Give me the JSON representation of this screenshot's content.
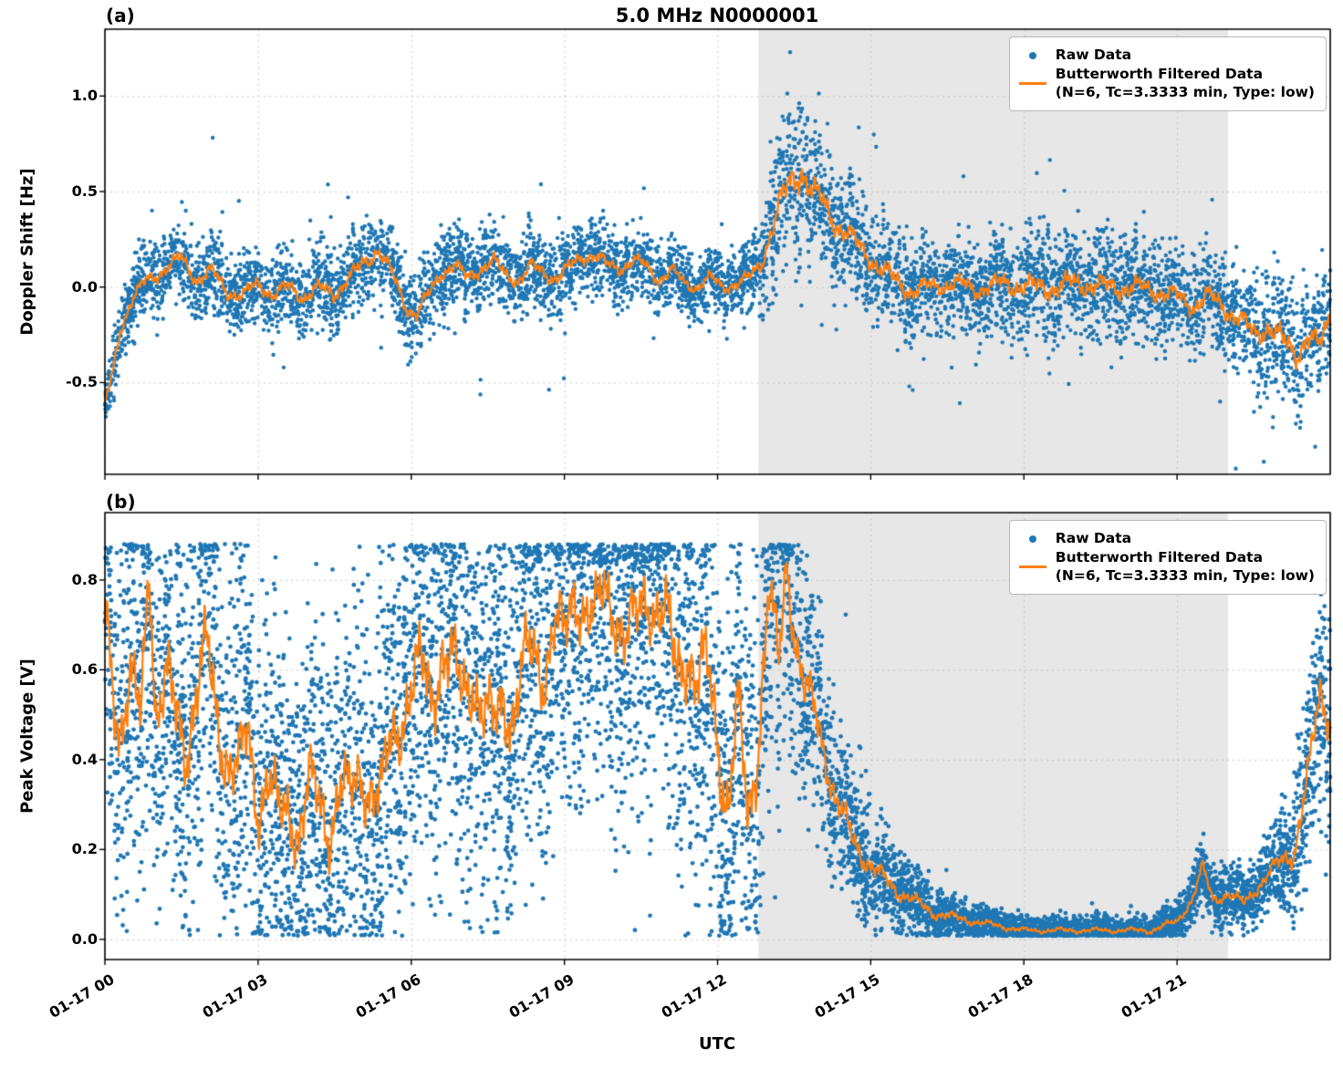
{
  "title": "5.0 MHz N0000001",
  "xlabel": "UTC",
  "chart_data": [
    {
      "type": "scatter",
      "panel_label": "(a)",
      "ylabel": "Doppler Shift [Hz]",
      "ylim": [
        -0.98,
        1.35
      ],
      "ytick_values": [
        1.0,
        0.5,
        0.0,
        -0.5
      ],
      "ytick_labels": [
        "1.0",
        "0.5",
        "0.0",
        "-0.5"
      ],
      "x_hours_range": [
        0,
        24
      ],
      "xtick_hours": [
        0,
        3,
        6,
        9,
        12,
        15,
        18,
        21
      ],
      "xtick_labels": [
        "01-17 00",
        "01-17 03",
        "01-17 06",
        "01-17 09",
        "01-17 12",
        "01-17 15",
        "01-17 18",
        "01-17 21"
      ],
      "show_xtick_labels": false,
      "shaded_region_hours": [
        12.8,
        22.0
      ],
      "shade_color": "#e7e7e7",
      "raw_color": "#1f77b4",
      "filtered_color": "#ff7f0e",
      "legend_raw": "Raw Data",
      "legend_filtered_1": "Butterworth Filtered Data",
      "legend_filtered_2": "(N=6, Tc=3.3333 min, Type: low)",
      "seed": 12345,
      "wiggle_phase": 1.3,
      "raw_point_count": 7000,
      "dot_radius": 2.2,
      "value_clip": [
        -0.95,
        1.26
      ],
      "line_clip": [
        -0.9,
        1.2
      ],
      "reflect_clip": false,
      "filtered_line": [
        [
          0,
          -0.62
        ],
        [
          0.15,
          -0.45
        ],
        [
          0.3,
          -0.22
        ],
        [
          0.5,
          -0.08
        ],
        [
          0.8,
          0.03
        ],
        [
          1.2,
          0.1
        ],
        [
          1.5,
          0.15
        ],
        [
          1.8,
          0.04
        ],
        [
          2.1,
          0.08
        ],
        [
          2.4,
          -0.02
        ],
        [
          2.7,
          -0.05
        ],
        [
          3.0,
          0.02
        ],
        [
          3.3,
          -0.04
        ],
        [
          3.6,
          0.0
        ],
        [
          3.9,
          -0.05
        ],
        [
          4.2,
          -0.01
        ],
        [
          4.5,
          -0.03
        ],
        [
          4.8,
          0.05
        ],
        [
          5.1,
          0.13
        ],
        [
          5.35,
          0.2
        ],
        [
          5.6,
          0.08
        ],
        [
          5.9,
          -0.1
        ],
        [
          6.1,
          -0.14
        ],
        [
          6.35,
          -0.04
        ],
        [
          6.6,
          0.08
        ],
        [
          6.85,
          0.12
        ],
        [
          7.1,
          0.04
        ],
        [
          7.35,
          0.1
        ],
        [
          7.6,
          0.14
        ],
        [
          7.85,
          0.06
        ],
        [
          8.1,
          0.04
        ],
        [
          8.35,
          0.11
        ],
        [
          8.6,
          0.07
        ],
        [
          8.85,
          0.05
        ],
        [
          9.1,
          0.1
        ],
        [
          9.35,
          0.16
        ],
        [
          9.6,
          0.17
        ],
        [
          9.85,
          0.11
        ],
        [
          10.1,
          0.1
        ],
        [
          10.35,
          0.14
        ],
        [
          10.6,
          0.11
        ],
        [
          10.85,
          0.04
        ],
        [
          11.1,
          0.09
        ],
        [
          11.35,
          0.02
        ],
        [
          11.6,
          0.0
        ],
        [
          11.85,
          0.05
        ],
        [
          12.1,
          0.0
        ],
        [
          12.35,
          0.02
        ],
        [
          12.6,
          0.04
        ],
        [
          12.85,
          0.12
        ],
        [
          13.05,
          0.3
        ],
        [
          13.25,
          0.45
        ],
        [
          13.45,
          0.55
        ],
        [
          13.65,
          0.62
        ],
        [
          13.85,
          0.5
        ],
        [
          14.05,
          0.44
        ],
        [
          14.3,
          0.34
        ],
        [
          14.55,
          0.28
        ],
        [
          14.8,
          0.2
        ],
        [
          15.05,
          0.14
        ],
        [
          15.3,
          0.07
        ],
        [
          15.55,
          0.02
        ],
        [
          15.8,
          -0.02
        ],
        [
          16.1,
          0.0
        ],
        [
          16.6,
          0.02
        ],
        [
          17.1,
          -0.01
        ],
        [
          17.6,
          0.02
        ],
        [
          18.1,
          0.0
        ],
        [
          18.6,
          0.0
        ],
        [
          19.1,
          0.02
        ],
        [
          19.6,
          0.0
        ],
        [
          20.1,
          0.0
        ],
        [
          20.6,
          -0.02
        ],
        [
          21.0,
          -0.05
        ],
        [
          21.3,
          -0.1
        ],
        [
          21.6,
          -0.05
        ],
        [
          21.9,
          -0.1
        ],
        [
          22.2,
          -0.16
        ],
        [
          22.5,
          -0.25
        ],
        [
          22.8,
          -0.2
        ],
        [
          23.1,
          -0.3
        ],
        [
          23.35,
          -0.35
        ],
        [
          23.55,
          -0.25
        ],
        [
          23.8,
          -0.32
        ],
        [
          24,
          -0.15
        ]
      ],
      "raw_spread": [
        [
          0,
          0.07
        ],
        [
          0.5,
          0.09
        ],
        [
          1,
          0.1
        ],
        [
          3,
          0.1
        ],
        [
          5,
          0.11
        ],
        [
          6,
          0.1
        ],
        [
          9,
          0.1
        ],
        [
          12,
          0.08
        ],
        [
          12.8,
          0.1
        ],
        [
          13.2,
          0.18
        ],
        [
          13.6,
          0.22
        ],
        [
          14,
          0.18
        ],
        [
          14.6,
          0.15
        ],
        [
          15.2,
          0.14
        ],
        [
          16,
          0.12
        ],
        [
          17,
          0.12
        ],
        [
          18,
          0.14
        ],
        [
          19,
          0.15
        ],
        [
          20,
          0.14
        ],
        [
          21,
          0.12
        ],
        [
          22,
          0.14
        ],
        [
          23,
          0.17
        ],
        [
          24,
          0.16
        ]
      ]
    },
    {
      "type": "scatter",
      "panel_label": "(b)",
      "ylabel": "Peak Voltage [V]",
      "ylim": [
        -0.045,
        0.95
      ],
      "ytick_values": [
        0.8,
        0.6,
        0.4,
        0.2,
        0.0
      ],
      "ytick_labels": [
        "0.8",
        "0.6",
        "0.4",
        "0.2",
        "0.0"
      ],
      "x_hours_range": [
        0,
        24
      ],
      "xtick_hours": [
        0,
        3,
        6,
        9,
        12,
        15,
        18,
        21
      ],
      "xtick_labels": [
        "01-17 00",
        "01-17 03",
        "01-17 06",
        "01-17 09",
        "01-17 12",
        "01-17 15",
        "01-17 18",
        "01-17 21"
      ],
      "show_xtick_labels": true,
      "shaded_region_hours": [
        12.8,
        22.0
      ],
      "shade_color": "#e7e7e7",
      "raw_color": "#1f77b4",
      "filtered_color": "#ff7f0e",
      "legend_raw": "Raw Data",
      "legend_filtered_1": "Butterworth Filtered Data",
      "legend_filtered_2": "(N=6, Tc=3.3333 min, Type: low)",
      "seed": 67890,
      "wiggle_phase": 2.7,
      "raw_point_count": 9000,
      "dot_radius": 2.4,
      "value_clip": [
        0.008,
        0.88
      ],
      "line_clip": [
        0.005,
        0.87
      ],
      "reflect_clip": true,
      "filtered_line": [
        [
          0,
          0.75
        ],
        [
          0.15,
          0.6
        ],
        [
          0.3,
          0.46
        ],
        [
          0.5,
          0.55
        ],
        [
          0.7,
          0.5
        ],
        [
          0.87,
          0.87
        ],
        [
          1.0,
          0.5
        ],
        [
          1.2,
          0.56
        ],
        [
          1.4,
          0.5
        ],
        [
          1.6,
          0.44
        ],
        [
          1.8,
          0.55
        ],
        [
          2.0,
          0.64
        ],
        [
          2.2,
          0.5
        ],
        [
          2.4,
          0.4
        ],
        [
          2.6,
          0.36
        ],
        [
          2.8,
          0.46
        ],
        [
          3.0,
          0.3
        ],
        [
          3.2,
          0.36
        ],
        [
          3.4,
          0.26
        ],
        [
          3.6,
          0.3
        ],
        [
          3.8,
          0.24
        ],
        [
          4.0,
          0.34
        ],
        [
          4.2,
          0.3
        ],
        [
          4.4,
          0.25
        ],
        [
          4.6,
          0.34
        ],
        [
          4.8,
          0.3
        ],
        [
          5.0,
          0.38
        ],
        [
          5.2,
          0.34
        ],
        [
          5.4,
          0.3
        ],
        [
          5.6,
          0.44
        ],
        [
          5.8,
          0.5
        ],
        [
          6.0,
          0.55
        ],
        [
          6.2,
          0.6
        ],
        [
          6.4,
          0.55
        ],
        [
          6.6,
          0.64
        ],
        [
          6.8,
          0.6
        ],
        [
          7.0,
          0.55
        ],
        [
          7.2,
          0.6
        ],
        [
          7.4,
          0.5
        ],
        [
          7.6,
          0.46
        ],
        [
          7.8,
          0.55
        ],
        [
          8.0,
          0.5
        ],
        [
          8.2,
          0.6
        ],
        [
          8.4,
          0.64
        ],
        [
          8.6,
          0.6
        ],
        [
          8.8,
          0.7
        ],
        [
          9.0,
          0.66
        ],
        [
          9.2,
          0.78
        ],
        [
          9.4,
          0.74
        ],
        [
          9.6,
          0.7
        ],
        [
          9.8,
          0.78
        ],
        [
          10.0,
          0.74
        ],
        [
          10.2,
          0.66
        ],
        [
          10.4,
          0.7
        ],
        [
          10.6,
          0.78
        ],
        [
          10.8,
          0.74
        ],
        [
          11.0,
          0.7
        ],
        [
          11.2,
          0.6
        ],
        [
          11.4,
          0.66
        ],
        [
          11.6,
          0.56
        ],
        [
          11.8,
          0.6
        ],
        [
          12.0,
          0.46
        ],
        [
          12.2,
          0.3
        ],
        [
          12.4,
          0.5
        ],
        [
          12.6,
          0.26
        ],
        [
          12.8,
          0.46
        ],
        [
          13.0,
          0.78
        ],
        [
          13.2,
          0.6
        ],
        [
          13.35,
          0.84
        ],
        [
          13.5,
          0.7
        ],
        [
          13.7,
          0.56
        ],
        [
          13.9,
          0.5
        ],
        [
          14.1,
          0.42
        ],
        [
          14.3,
          0.32
        ],
        [
          14.5,
          0.26
        ],
        [
          14.7,
          0.21
        ],
        [
          14.9,
          0.18
        ],
        [
          15.2,
          0.14
        ],
        [
          15.5,
          0.11
        ],
        [
          15.8,
          0.09
        ],
        [
          16.2,
          0.06
        ],
        [
          16.6,
          0.05
        ],
        [
          17.0,
          0.04
        ],
        [
          17.5,
          0.03
        ],
        [
          18.0,
          0.02
        ],
        [
          18.5,
          0.02
        ],
        [
          19.0,
          0.02
        ],
        [
          19.5,
          0.02
        ],
        [
          20.0,
          0.02
        ],
        [
          20.5,
          0.02
        ],
        [
          21.0,
          0.04
        ],
        [
          21.3,
          0.09
        ],
        [
          21.5,
          0.16
        ],
        [
          21.7,
          0.09
        ],
        [
          22.0,
          0.1
        ],
        [
          22.3,
          0.08
        ],
        [
          22.6,
          0.12
        ],
        [
          23.0,
          0.17
        ],
        [
          23.3,
          0.2
        ],
        [
          23.6,
          0.38
        ],
        [
          23.8,
          0.55
        ],
        [
          24,
          0.5
        ]
      ],
      "raw_spread": [
        [
          0,
          0.2
        ],
        [
          1,
          0.22
        ],
        [
          2,
          0.22
        ],
        [
          3,
          0.2
        ],
        [
          4,
          0.2
        ],
        [
          5,
          0.2
        ],
        [
          6,
          0.22
        ],
        [
          7,
          0.22
        ],
        [
          8,
          0.22
        ],
        [
          9,
          0.2
        ],
        [
          10,
          0.2
        ],
        [
          11,
          0.22
        ],
        [
          12,
          0.24
        ],
        [
          12.8,
          0.22
        ],
        [
          13.3,
          0.16
        ],
        [
          13.8,
          0.14
        ],
        [
          14.3,
          0.1
        ],
        [
          14.8,
          0.07
        ],
        [
          15.3,
          0.05
        ],
        [
          16,
          0.035
        ],
        [
          17,
          0.02
        ],
        [
          18,
          0.015
        ],
        [
          19,
          0.015
        ],
        [
          20,
          0.015
        ],
        [
          21,
          0.02
        ],
        [
          21.5,
          0.035
        ],
        [
          22,
          0.03
        ],
        [
          22.5,
          0.035
        ],
        [
          23,
          0.05
        ],
        [
          23.5,
          0.1
        ],
        [
          24,
          0.13
        ]
      ]
    }
  ]
}
